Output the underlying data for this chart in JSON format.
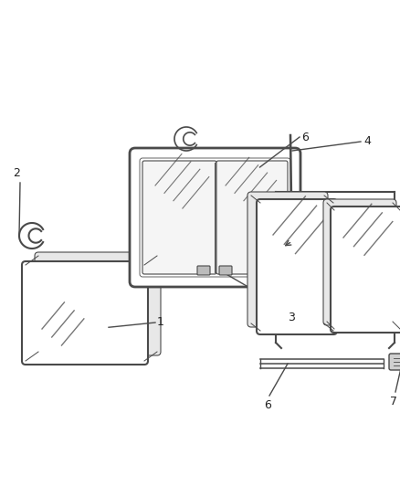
{
  "background_color": "#ffffff",
  "line_color": "#4a4a4a",
  "label_color": "#222222",
  "fig_width": 4.38,
  "fig_height": 5.33,
  "dpi": 100
}
